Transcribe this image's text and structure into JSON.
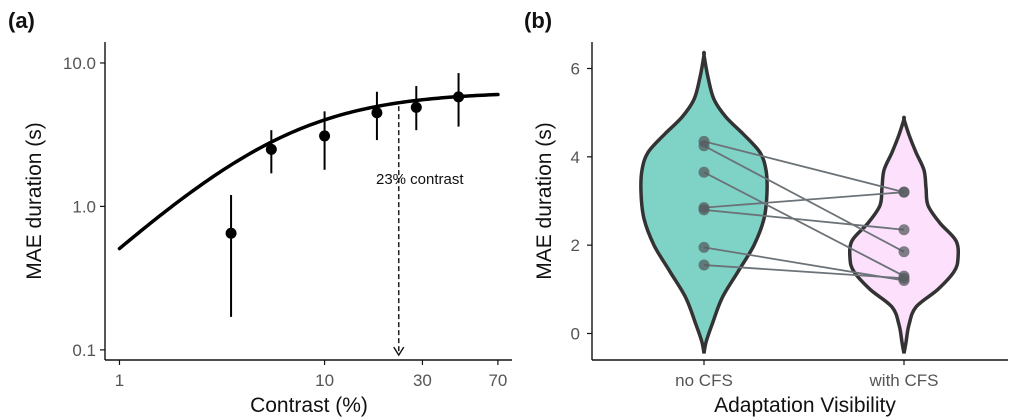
{
  "chart_data": [
    {
      "panel": "(a)",
      "type": "scatter",
      "xlabel": "Contrast (%)",
      "ylabel": "MAE duration (s)",
      "x_scale": "log",
      "y_scale": "log",
      "xlim": [
        0.85,
        82
      ],
      "ylim": [
        0.085,
        14
      ],
      "x_ticks": [
        1,
        10,
        30,
        70
      ],
      "x_tick_labels": [
        "1",
        "10",
        "30",
        "70"
      ],
      "y_ticks": [
        0.1,
        1.0,
        10.0
      ],
      "y_tick_labels": [
        "0.1",
        "1.0",
        "10.0"
      ],
      "points": [
        {
          "x": 3.5,
          "y": 0.65,
          "lo": 0.17,
          "hi": 1.2
        },
        {
          "x": 5.5,
          "y": 2.5,
          "lo": 1.7,
          "hi": 3.4
        },
        {
          "x": 10,
          "y": 3.1,
          "lo": 1.8,
          "hi": 4.6
        },
        {
          "x": 18,
          "y": 4.5,
          "lo": 2.9,
          "hi": 6.3
        },
        {
          "x": 28,
          "y": 4.9,
          "lo": 3.4,
          "hi": 6.9
        },
        {
          "x": 45,
          "y": 5.8,
          "lo": 3.6,
          "hi": 8.5
        }
      ],
      "fit_curve": {
        "rmax": 6.3,
        "c50": 6.5,
        "n": 1.3,
        "x_range": [
          1,
          70
        ]
      },
      "annotation": {
        "text": "23% contrast",
        "x": 23,
        "arrow_from_y": 5.0,
        "arrow_to_y": 0.092
      },
      "grid": false,
      "legend": "none"
    },
    {
      "panel": "(b)",
      "type": "violin",
      "xlabel": "Adaptation Visibility",
      "ylabel": "MAE duration (s)",
      "categories": [
        "no CFS",
        "with CFS"
      ],
      "ylim": [
        -0.6,
        6.6
      ],
      "y_ticks": [
        0,
        2,
        4,
        6
      ],
      "y_tick_labels": [
        "0",
        "2",
        "4",
        "6"
      ],
      "colors": {
        "no CFS": "#7fd3c6",
        "with CFS": "#fde0fb"
      },
      "outline_color": "#333333",
      "paired_points": [
        {
          "no_cfs": 4.35,
          "with_cfs": 3.2
        },
        {
          "no_cfs": 4.25,
          "with_cfs": 1.85
        },
        {
          "no_cfs": 3.65,
          "with_cfs": 1.3
        },
        {
          "no_cfs": 2.85,
          "with_cfs": 3.2
        },
        {
          "no_cfs": 2.8,
          "with_cfs": 2.35
        },
        {
          "no_cfs": 1.95,
          "with_cfs": 1.2
        },
        {
          "no_cfs": 1.55,
          "with_cfs": 1.25
        }
      ],
      "violin_range": {
        "no CFS": [
          -0.45,
          6.3
        ],
        "with CFS": [
          -0.45,
          4.85
        ]
      },
      "grid": false,
      "legend": "none"
    }
  ]
}
